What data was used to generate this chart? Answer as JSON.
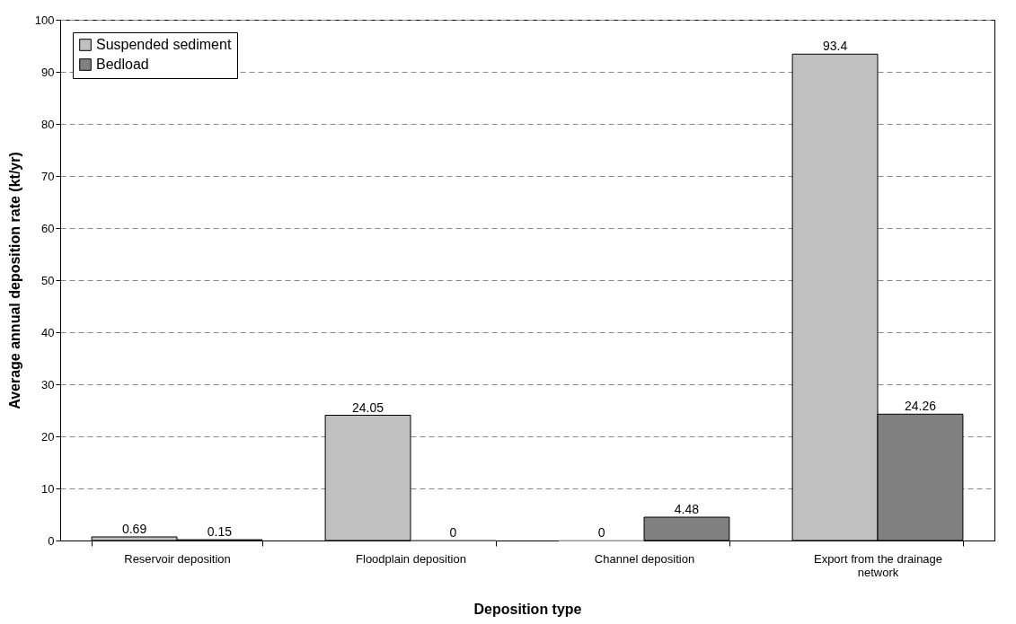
{
  "chart_data": {
    "type": "bar",
    "xlabel": "Deposition type",
    "ylabel": "Average annual deposition rate (kt/yr)",
    "categories": [
      "Reservoir deposition",
      "Floodplain deposition",
      "Channel deposition",
      "Export from the drainage network"
    ],
    "series": [
      {
        "name": "Suspended sediment",
        "color": "#c0c0c0",
        "values": [
          0.69,
          24.05,
          0,
          93.4
        ]
      },
      {
        "name": "Bedload",
        "color": "#808080",
        "values": [
          0.15,
          0,
          4.48,
          24.26
        ]
      }
    ],
    "ylim": [
      0,
      100
    ],
    "yticks": [
      0,
      10,
      20,
      30,
      40,
      50,
      60,
      70,
      80,
      90,
      100
    ],
    "grid": "y",
    "legend": "top left",
    "data_labels": true
  }
}
